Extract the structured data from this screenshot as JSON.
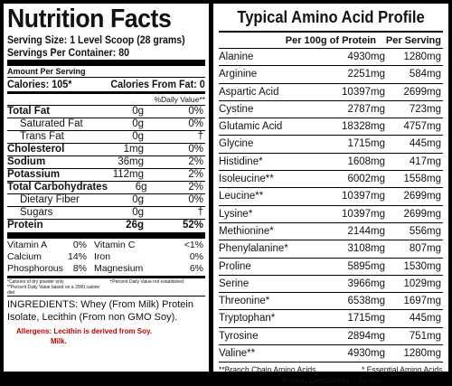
{
  "nutrition": {
    "title": "Nutrition Facts",
    "serving_size": "Serving Size: 1 Level Scoop (28 grams)",
    "servings_per_container": "Servings Per Container: 80",
    "amount_per_serving": "Amount Per Serving",
    "calories": "Calories: 105*",
    "calories_from_fat": "Calories From Fat: 0",
    "daily_value_header": "%Daily Value**",
    "rows": [
      {
        "name": "Total Fat",
        "amount": "0g",
        "dv": "0%",
        "bold": true
      },
      {
        "name": "Saturated Fat",
        "amount": "0g",
        "dv": "0%",
        "indent": true
      },
      {
        "name": "Trans Fat",
        "amount": "0g",
        "dv": "†",
        "indent": true
      },
      {
        "name": "Cholesterol",
        "amount": "1mg",
        "dv": "0%",
        "bold": true
      },
      {
        "name": "Sodium",
        "amount": "36mg",
        "dv": "2%",
        "bold": true
      },
      {
        "name": "Potassium",
        "amount": "112mg",
        "dv": "2%",
        "bold": true
      },
      {
        "name": "Total Carbohydrates",
        "amount": "6g",
        "dv": "2%",
        "bold": true
      },
      {
        "name": "Dietary Fiber",
        "amount": "0g",
        "dv": "0%",
        "indent": true
      },
      {
        "name": "Sugars",
        "amount": "0g",
        "dv": "†",
        "indent": true
      },
      {
        "name": "Protein",
        "amount": "26g",
        "dv": "52%",
        "bold": true
      }
    ],
    "vitamins": [
      {
        "name": "Vitamin A",
        "dv": "0%",
        "name2": "Vitamin C",
        "dv2": "<1%"
      },
      {
        "name": "Calcium",
        "dv": "14%",
        "name2": "Iron",
        "dv2": "0%"
      },
      {
        "name": "Phosphorous",
        "dv": "8%",
        "name2": "Magnesium",
        "dv2": "6%"
      }
    ],
    "footnote_left_1": "*Calories of dry powder only",
    "footnote_left_2": "**Percent Daily Value based on a 2000 calorie diet",
    "footnote_right": "†Percent Daily Value not established",
    "ingredients": "INGREDIENTS: Whey (From Milk) Protein Isolate, Lecithin (From non GMO Soy).",
    "allergens_line1": "Allergens: Lecithin is derived from Soy.",
    "allergens_line2": "Milk.",
    "allergen_color": "#c00000"
  },
  "amino": {
    "title": "Typical Amino Acid Profile",
    "col_per100g": "Per 100g of Protein",
    "col_serving": "Per Serving",
    "rows": [
      {
        "name": "Alanine",
        "per100g": "4930mg",
        "serving": "1280mg"
      },
      {
        "name": "Arginine",
        "per100g": "2251mg",
        "serving": "584mg"
      },
      {
        "name": "Aspartic Acid",
        "per100g": "10397mg",
        "serving": "2699mg"
      },
      {
        "name": "Cystine",
        "per100g": "2787mg",
        "serving": "723mg"
      },
      {
        "name": "Glutamic Acid",
        "per100g": "18328mg",
        "serving": "4757mg"
      },
      {
        "name": "Glycine",
        "per100g": "1715mg",
        "serving": "445mg"
      },
      {
        "name": "Histidine*",
        "per100g": "1608mg",
        "serving": "417mg"
      },
      {
        "name": "Isoleucine**",
        "per100g": "6002mg",
        "serving": "1558mg"
      },
      {
        "name": "Leucine**",
        "per100g": "10397mg",
        "serving": "2699mg"
      },
      {
        "name": "Lysine*",
        "per100g": "10397mg",
        "serving": "2699mg"
      },
      {
        "name": "Methionine*",
        "per100g": "2144mg",
        "serving": "556mg"
      },
      {
        "name": "Phenylalanine*",
        "per100g": "3108mg",
        "serving": "807mg"
      },
      {
        "name": "Proline",
        "per100g": "5895mg",
        "serving": "1530mg"
      },
      {
        "name": "Serine",
        "per100g": "3966mg",
        "serving": "1029mg"
      },
      {
        "name": "Threonine*",
        "per100g": "6538mg",
        "serving": "1697mg"
      },
      {
        "name": "Tryptophan*",
        "per100g": "1715mg",
        "serving": "445mg"
      },
      {
        "name": "Tyrosine",
        "per100g": "2894mg",
        "serving": "751mg"
      },
      {
        "name": "Valine**",
        "per100g": "4930mg",
        "serving": "1280mg"
      }
    ],
    "legend_bcaa": "**Branch Chain Amino Acids",
    "legend_eaa": "* Essential Amino Acids",
    "digestibility": "Protein Digestibility - 99.6%"
  }
}
